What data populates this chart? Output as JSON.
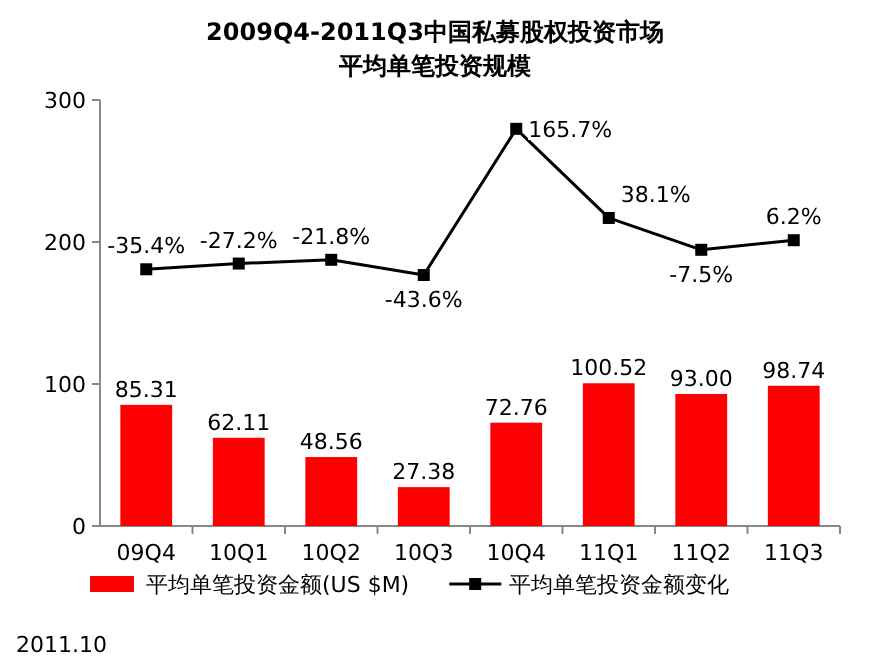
{
  "chart_data": {
    "type": "bar",
    "title": "2009Q4-2011Q3中国私募股权投资市场",
    "subtitle": "平均单笔投资规模",
    "categories": [
      "09Q4",
      "10Q1",
      "10Q2",
      "10Q3",
      "10Q4",
      "11Q1",
      "11Q2",
      "11Q3"
    ],
    "series": [
      {
        "name": "平均单笔投资金额(US $M)",
        "color": "#ff0000",
        "values": [
          85.31,
          62.11,
          48.56,
          27.38,
          72.76,
          100.52,
          93.0,
          98.74
        ],
        "value_labels": [
          "85.31",
          "62.11",
          "48.56",
          "27.38",
          "72.76",
          "100.52",
          "93.00",
          "98.74"
        ]
      },
      {
        "name": "平均单笔投资金额变化",
        "type": "line",
        "axis": "y2",
        "color": "#000000",
        "values": [
          -35.4,
          -27.2,
          -21.8,
          -43.6,
          165.7,
          38.1,
          -7.5,
          6.2
        ],
        "value_labels": [
          "-35.4%",
          "-27.2%",
          "-21.8%",
          "-43.6%",
          "165.7%",
          "38.1%",
          "-7.5%",
          "6.2%"
        ]
      }
    ],
    "ylim": [
      0,
      300
    ],
    "yticks": [
      0,
      100,
      200,
      300
    ],
    "y2lim": [
      -403,
      207
    ],
    "legend": "bottom",
    "marker": "square",
    "line_style": "solid",
    "grid": false,
    "annotations": [
      "2011.10"
    ]
  }
}
